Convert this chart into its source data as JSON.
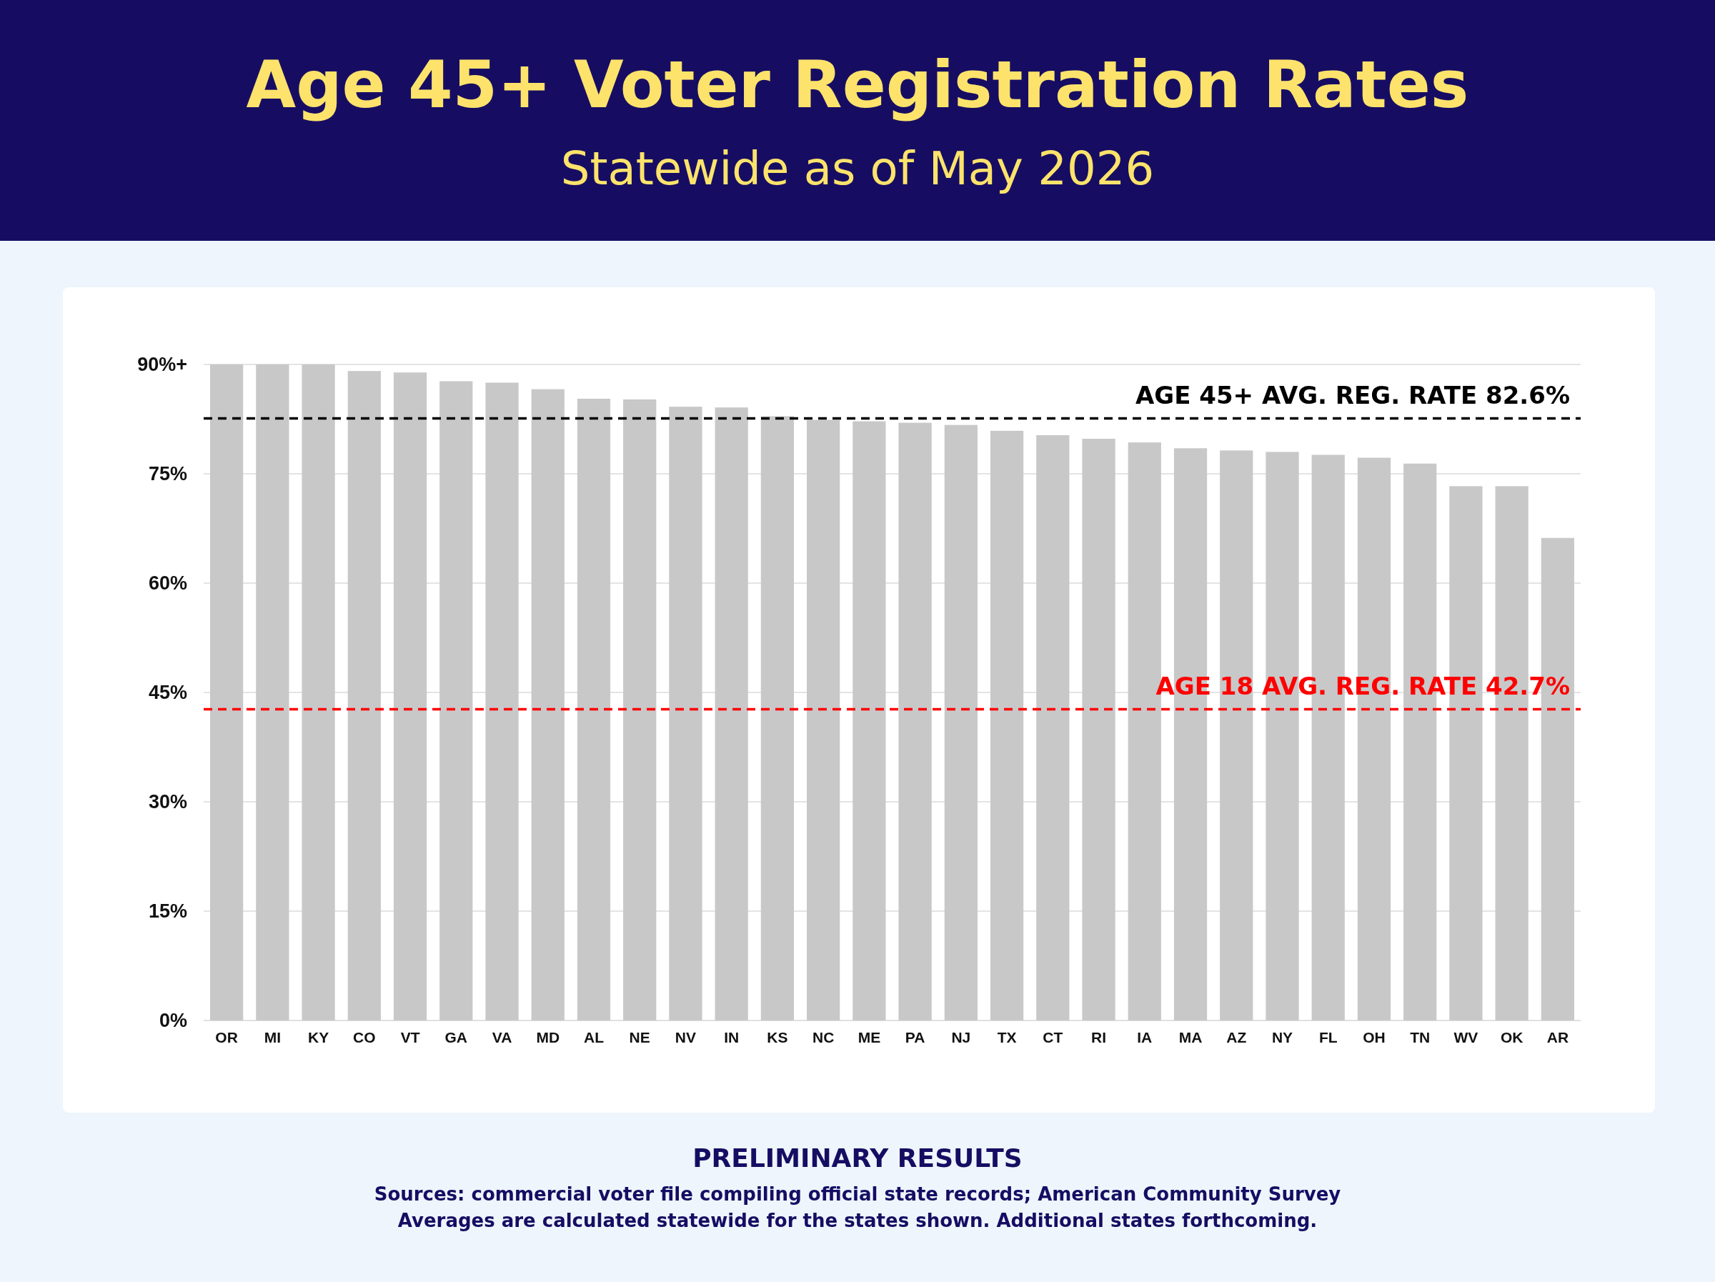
{
  "chart_data": {
    "type": "bar",
    "title": "Age 45+ Voter Registration Rates",
    "subtitle": "Statewide as of May 2026",
    "categories": [
      "OR",
      "MI",
      "KY",
      "CO",
      "VT",
      "GA",
      "VA",
      "MD",
      "AL",
      "NE",
      "NV",
      "IN",
      "KS",
      "NC",
      "ME",
      "PA",
      "NJ",
      "TX",
      "CT",
      "RI",
      "IA",
      "MA",
      "AZ",
      "NY",
      "FL",
      "OH",
      "TN",
      "WV",
      "OK",
      "AR"
    ],
    "values": [
      90,
      90,
      90,
      89.1,
      88.9,
      87.7,
      87.5,
      86.6,
      85.3,
      85.2,
      84.2,
      84.1,
      82.9,
      82.4,
      82.2,
      82.0,
      81.7,
      80.9,
      80.3,
      79.8,
      79.3,
      78.5,
      78.2,
      78.0,
      77.6,
      77.2,
      76.4,
      73.3,
      73.3,
      66.2
    ],
    "color": "#c8c8c8",
    "ylim": [
      0,
      90
    ],
    "yticks": [
      {
        "value": 0,
        "label": "0%"
      },
      {
        "value": 15,
        "label": "15%"
      },
      {
        "value": 30,
        "label": "30%"
      },
      {
        "value": 45,
        "label": "45%"
      },
      {
        "value": 60,
        "label": "60%"
      },
      {
        "value": 75,
        "label": "75%"
      },
      {
        "value": 90,
        "label": "90%+"
      }
    ],
    "grid": "y",
    "ref_lines": [
      {
        "axis": "y",
        "value": 82.6,
        "label": "AGE 45+ AVG. REG. RATE 82.6%",
        "color": "#000000",
        "line_style": "dashed"
      },
      {
        "axis": "y",
        "value": 42.7,
        "label": "AGE 18 AVG. REG. RATE 42.7%",
        "color": "#ff0000",
        "line_style": "dashed"
      }
    ],
    "annotations": [
      "PRELIMINARY RESULTS",
      "Sources: commercial voter file compiling official state records; American Community Survey",
      "Averages are calculated statewide for the states shown. Additional states forthcoming."
    ]
  }
}
